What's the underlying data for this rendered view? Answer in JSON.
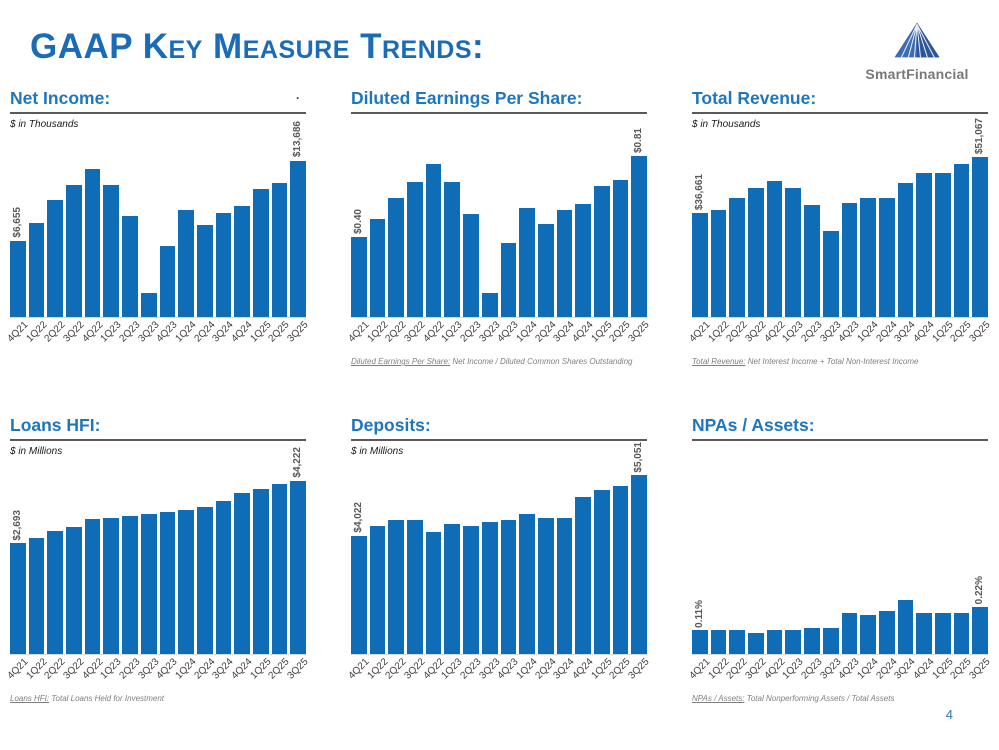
{
  "header": {
    "title": "GAAP Key Measure Trends:",
    "logo_text": "SmartFinancial",
    "stray_mark": "."
  },
  "footer": {
    "page_number": "4"
  },
  "colors": {
    "bar": "#0f6cb6",
    "chart_title": "#1e76be",
    "header_title": "#1b6cb8",
    "logo_text": "#77787b"
  },
  "chart_data": [
    {
      "key": "net-income",
      "type": "bar",
      "title": "Net Income:",
      "subtitle": "$ in Thousands",
      "categories": [
        "4Q21",
        "1Q22",
        "2Q22",
        "3Q22",
        "4Q22",
        "1Q23",
        "2Q23",
        "3Q23",
        "4Q23",
        "1Q24",
        "2Q24",
        "3Q24",
        "4Q24",
        "1Q25",
        "2Q25",
        "3Q25"
      ],
      "values": [
        6655,
        8250,
        10200,
        11510,
        12960,
        11510,
        8830,
        2120,
        6180,
        9380,
        8010,
        9120,
        9680,
        11210,
        11710,
        13686
      ],
      "ylim": [
        0,
        16000
      ],
      "first_bar_label": "$6,655",
      "last_bar_label": "$13,686",
      "footnote_lead": null,
      "footnote_rest": null
    },
    {
      "key": "diluted-eps",
      "type": "bar",
      "title": "Diluted Earnings Per Share:",
      "subtitle": null,
      "categories": [
        "4Q21",
        "1Q22",
        "2Q22",
        "3Q22",
        "4Q22",
        "1Q23",
        "2Q23",
        "3Q23",
        "4Q23",
        "1Q24",
        "2Q24",
        "3Q24",
        "4Q24",
        "1Q25",
        "2Q25",
        "3Q25"
      ],
      "values": [
        0.4,
        0.49,
        0.6,
        0.68,
        0.77,
        0.68,
        0.52,
        0.12,
        0.37,
        0.55,
        0.47,
        0.54,
        0.57,
        0.66,
        0.69,
        0.81
      ],
      "ylim": [
        0,
        0.92
      ],
      "first_bar_label": "$0.40",
      "last_bar_label": "$0.81",
      "footnote_lead": "Diluted Earnings Per Share:",
      "footnote_rest": " Net Income / Diluted Common Shares Outstanding"
    },
    {
      "key": "total-revenue",
      "type": "bar",
      "title": "Total Revenue:",
      "subtitle": "$ in Thousands",
      "categories": [
        "4Q21",
        "1Q22",
        "2Q22",
        "3Q22",
        "4Q22",
        "1Q23",
        "2Q23",
        "3Q23",
        "4Q23",
        "1Q24",
        "2Q24",
        "3Q24",
        "4Q24",
        "1Q25",
        "2Q25",
        "3Q25"
      ],
      "values": [
        36661,
        37600,
        40600,
        43200,
        45000,
        43200,
        38800,
        32100,
        39300,
        40500,
        40600,
        44400,
        47100,
        47100,
        49400,
        51067
      ],
      "ylim": [
        10000,
        57000
      ],
      "first_bar_label": "$36,661",
      "last_bar_label": "$51,067",
      "footnote_lead": "Total Revenue:",
      "footnote_rest": " Net Interest Income + Total Non-Interest Income"
    },
    {
      "key": "loans-hfi",
      "type": "bar",
      "title": "Loans HFI:",
      "subtitle": "$ in Millions",
      "categories": [
        "4Q21",
        "1Q22",
        "2Q22",
        "3Q22",
        "4Q22",
        "1Q23",
        "2Q23",
        "3Q23",
        "4Q23",
        "1Q24",
        "2Q24",
        "3Q24",
        "4Q24",
        "1Q25",
        "2Q25",
        "3Q25"
      ],
      "values": [
        2693,
        2820,
        2990,
        3090,
        3285,
        3310,
        3360,
        3410,
        3460,
        3510,
        3580,
        3730,
        3930,
        4030,
        4150,
        4222
      ],
      "ylim": [
        0,
        4700
      ],
      "first_bar_label": "$2,693",
      "last_bar_label": "$4,222",
      "footnote_lead": "Loans HFI:",
      "footnote_rest": " Total Loans Held for Investment"
    },
    {
      "key": "deposits",
      "type": "bar",
      "title": "Deposits:",
      "subtitle": "$ in Millions",
      "categories": [
        "4Q21",
        "1Q22",
        "2Q22",
        "3Q22",
        "4Q22",
        "1Q23",
        "2Q23",
        "3Q23",
        "4Q23",
        "1Q24",
        "2Q24",
        "3Q24",
        "4Q24",
        "1Q25",
        "2Q25",
        "3Q25"
      ],
      "values": [
        4022,
        4190,
        4290,
        4290,
        4080,
        4220,
        4190,
        4250,
        4290,
        4400,
        4320,
        4330,
        4680,
        4800,
        4880,
        5051
      ],
      "ylim": [
        2000,
        5300
      ],
      "first_bar_label": "$4,022",
      "last_bar_label": "$5,051",
      "footnote_lead": null,
      "footnote_rest": null
    },
    {
      "key": "npas-assets",
      "type": "bar",
      "title": "NPAs / Assets:",
      "subtitle": null,
      "categories": [
        "4Q21",
        "1Q22",
        "2Q22",
        "3Q22",
        "4Q22",
        "1Q23",
        "2Q23",
        "3Q23",
        "4Q23",
        "1Q24",
        "2Q24",
        "3Q24",
        "4Q24",
        "1Q25",
        "2Q25",
        "3Q25"
      ],
      "values": [
        0.11,
        0.11,
        0.11,
        0.1,
        0.11,
        0.11,
        0.12,
        0.12,
        0.19,
        0.18,
        0.2,
        0.25,
        0.19,
        0.19,
        0.19,
        0.22
      ],
      "ylim": [
        0,
        0.9
      ],
      "first_bar_label": "0.11%",
      "last_bar_label": "0.22%",
      "footnote_lead": "NPAs / Assets:",
      "footnote_rest": " Total Nonperforming Assets / Total Assets"
    }
  ]
}
